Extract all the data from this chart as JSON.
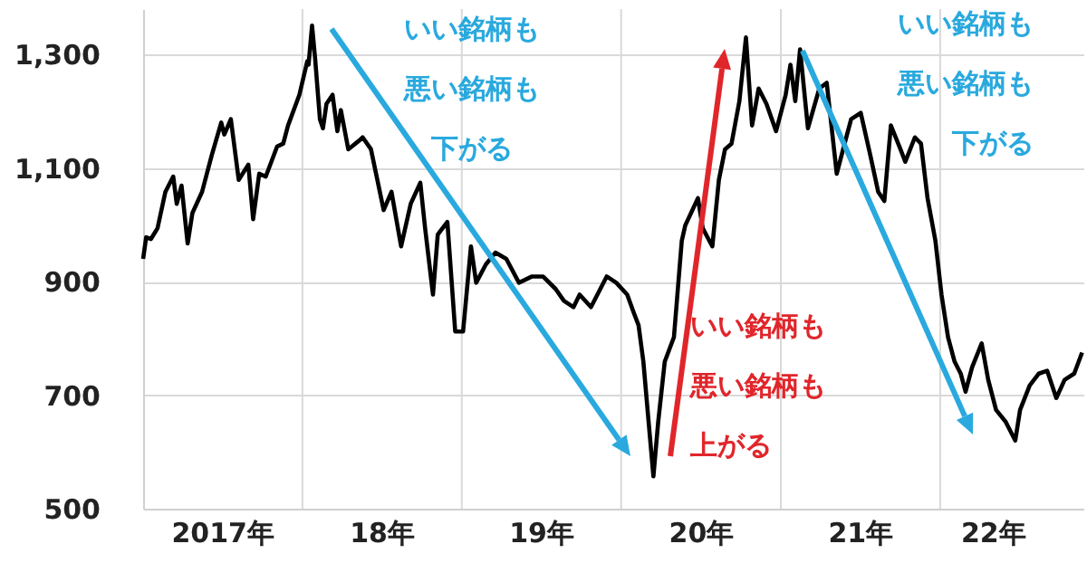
{
  "chart_data": {
    "type": "line",
    "x": [
      "2017-01-01",
      "2017-01-08",
      "2017-01-19",
      "2017-02-03",
      "2017-02-21",
      "2017-03-11",
      "2017-03-19",
      "2017-03-30",
      "2017-04-13",
      "2017-04-24",
      "2017-05-16",
      "2017-06-07",
      "2017-06-29",
      "2017-07-06",
      "2017-07-21",
      "2017-08-08",
      "2017-08-30",
      "2017-09-10",
      "2017-09-24",
      "2017-10-09",
      "2017-11-04",
      "2017-11-18",
      "2017-11-29",
      "2017-12-25",
      "2018-01-12",
      "2018-01-15",
      "2018-01-23",
      "2018-01-30",
      "2018-02-10",
      "2018-02-17",
      "2018-02-25",
      "2018-03-11",
      "2018-03-22",
      "2018-03-30",
      "2018-04-16",
      "2018-05-12",
      "2018-05-19",
      "2018-06-07",
      "2018-07-06",
      "2018-07-24",
      "2018-08-15",
      "2018-09-06",
      "2018-09-28",
      "2018-10-09",
      "2018-10-27",
      "2018-11-07",
      "2018-11-29",
      "2018-12-17",
      "2019-01-04",
      "2019-01-22",
      "2019-02-03",
      "2019-02-25",
      "2019-03-19",
      "2019-04-13",
      "2019-05-12",
      "2019-06-11",
      "2019-07-06",
      "2019-08-04",
      "2019-08-23",
      "2019-09-14",
      "2019-09-28",
      "2019-10-24",
      "2019-11-29",
      "2019-12-21",
      "2020-01-15",
      "2020-01-30",
      "2020-02-10",
      "2020-02-21",
      "2020-03-04",
      "2020-03-15",
      "2020-03-26",
      "2020-04-10",
      "2020-05-01",
      "2020-05-19",
      "2020-05-27",
      "2020-06-25",
      "2020-07-06",
      "2020-07-28",
      "2020-08-12",
      "2020-08-26",
      "2020-09-10",
      "2020-09-28",
      "2020-10-13",
      "2020-10-27",
      "2020-11-11",
      "2020-11-29",
      "2020-12-21",
      "2021-01-12",
      "2021-01-23",
      "2021-02-03",
      "2021-02-14",
      "2021-03-04",
      "2021-03-30",
      "2021-04-16",
      "2021-05-09",
      "2021-05-27",
      "2021-06-11",
      "2021-07-03",
      "2021-07-25",
      "2021-08-12",
      "2021-08-26",
      "2021-09-10",
      "2021-10-02",
      "2021-10-13",
      "2021-11-04",
      "2021-11-18",
      "2021-12-03",
      "2021-12-21",
      "2022-01-04",
      "2022-01-19",
      "2022-02-03",
      "2022-02-17",
      "2022-02-28",
      "2022-03-15",
      "2022-04-06",
      "2022-04-21",
      "2022-05-09",
      "2022-05-31",
      "2022-06-22",
      "2022-07-03",
      "2022-07-25",
      "2022-08-15",
      "2022-09-03",
      "2022-09-24",
      "2022-10-13",
      "2022-11-04",
      "2022-11-22"
    ],
    "series": [
      {
        "color": "#000000",
        "values": [
          940,
          978,
          975,
          994,
          1058,
          1085,
          1037,
          1069,
          967,
          1021,
          1058,
          1122,
          1180,
          1159,
          1186,
          1079,
          1106,
          1010,
          1090,
          1085,
          1138,
          1143,
          1175,
          1229,
          1288,
          1282,
          1351,
          1293,
          1186,
          1170,
          1213,
          1229,
          1165,
          1202,
          1133,
          1149,
          1154,
          1133,
          1026,
          1058,
          962,
          1037,
          1074,
          994,
          877,
          983,
          1005,
          812,
          812,
          962,
          898,
          930,
          951,
          940,
          898,
          909,
          909,
          887,
          866,
          855,
          877,
          855,
          909,
          898,
          877,
          845,
          823,
          759,
          653,
          557,
          653,
          759,
          802,
          972,
          999,
          1047,
          994,
          962,
          1079,
          1133,
          1143,
          1218,
          1330,
          1175,
          1240,
          1213,
          1165,
          1229,
          1282,
          1218,
          1309,
          1170,
          1240,
          1250,
          1090,
          1143,
          1186,
          1197,
          1122,
          1058,
          1042,
          1175,
          1133,
          1111,
          1154,
          1143,
          1047,
          972,
          877,
          802,
          759,
          738,
          706,
          749,
          791,
          727,
          674,
          653,
          620,
          674,
          717,
          738,
          743,
          695,
          727,
          738,
          775
        ]
      }
    ],
    "xlim": [
      "2017-01-01",
      "2022-11-25"
    ],
    "xticks": [
      {
        "value": "2017-07",
        "label": "2017年"
      },
      {
        "value": "2018",
        "label": null
      },
      {
        "value": "2018-07",
        "label": "18年"
      },
      {
        "value": "2019",
        "label": null
      },
      {
        "value": "2019-07",
        "label": "19年"
      },
      {
        "value": "2020",
        "label": null
      },
      {
        "value": "2020-07",
        "label": "20年"
      },
      {
        "value": "2021",
        "label": null
      },
      {
        "value": "2021-07",
        "label": "21年"
      },
      {
        "value": "2022",
        "label": null
      },
      {
        "value": "2022-05",
        "label": "22年"
      }
    ],
    "ylim": [
      500,
      1380
    ],
    "yticks": [
      500,
      700,
      900,
      {
        "value": 1100,
        "label": "1,100"
      },
      {
        "value": 1300,
        "label": "1,300"
      }
    ],
    "grid": true,
    "annotations": [
      "いい銘柄も悪い銘柄も下がる",
      "いい銘柄も悪い銘柄も上がる",
      "いい銘柄も悪い銘柄も下がる"
    ]
  }
}
